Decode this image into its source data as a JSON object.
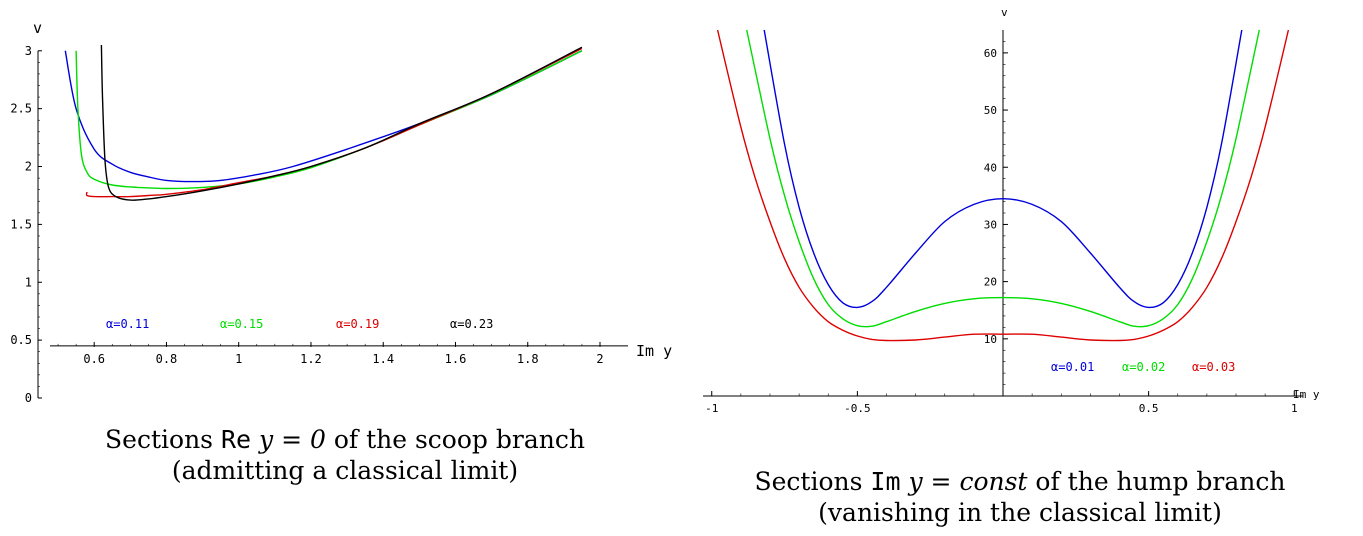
{
  "captions": {
    "left": {
      "line1_pre": "Sections ",
      "line1_code": "Re",
      "line1_math": " y = 0",
      "line1_post": " of the scoop branch",
      "line2": "(admitting a classical limit)"
    },
    "right": {
      "line1_pre": "Sections ",
      "line1_code": "Im",
      "line1_math": " y = ",
      "line1_math_it": "const",
      "line1_post": " of the hump branch",
      "line2": "(vanishing in the classical limit)"
    }
  },
  "chart_data": [
    {
      "type": "line",
      "xlabel": "Im y",
      "ylabel": "v",
      "xlim": [
        0.45,
        2.0
      ],
      "ylim": [
        0,
        3.05
      ],
      "x_axis_at_y": 0.45,
      "xticks": [
        0.6,
        0.8,
        1,
        1.2,
        1.4,
        1.6,
        1.8,
        2
      ],
      "xtick_labels": [
        "0.6",
        "0.8",
        "1",
        "1.2",
        "1.4",
        "1.6",
        "1.8",
        "2"
      ],
      "yticks": [
        0,
        0.5,
        1,
        1.5,
        2,
        2.5,
        3
      ],
      "ytick_labels": [
        "0",
        "0.5",
        "1",
        "1.5",
        "2",
        "2.5",
        "3"
      ],
      "series": [
        {
          "name": "α=0.11",
          "color": "#0000dd",
          "x": [
            0.52,
            0.55,
            0.6,
            0.65,
            0.7,
            0.75,
            0.8,
            0.87,
            0.95,
            1.05,
            1.15,
            1.3,
            1.5,
            1.7,
            1.95
          ],
          "y": [
            3.0,
            2.5,
            2.15,
            2.02,
            1.95,
            1.91,
            1.88,
            1.87,
            1.88,
            1.93,
            2.0,
            2.15,
            2.37,
            2.62,
            3.0
          ]
        },
        {
          "name": "α=0.15",
          "color": "#00dd00",
          "x": [
            0.55,
            0.555,
            0.565,
            0.58,
            0.6,
            0.65,
            0.72,
            0.8,
            0.9,
            1.0,
            1.1,
            1.2,
            1.35,
            1.5,
            1.7,
            1.95
          ],
          "y": [
            3.0,
            2.5,
            2.1,
            1.95,
            1.89,
            1.84,
            1.82,
            1.81,
            1.82,
            1.85,
            1.91,
            1.99,
            2.16,
            2.36,
            2.62,
            3.0
          ]
        },
        {
          "name": "α=0.19",
          "color": "#dd0000",
          "x": [
            0.58,
            0.58,
            0.6,
            0.65,
            0.7,
            0.75,
            0.8,
            0.9,
            1.0,
            1.1,
            1.2,
            1.35,
            1.5,
            1.7,
            1.95
          ],
          "y": [
            1.78,
            1.75,
            1.74,
            1.74,
            1.74,
            1.75,
            1.76,
            1.8,
            1.86,
            1.92,
            2.0,
            2.16,
            2.36,
            2.63,
            3.02
          ]
        },
        {
          "name": "α=0.23",
          "color": "#000000",
          "x": [
            0.62,
            0.623,
            0.63,
            0.64,
            0.66,
            0.7,
            0.75,
            0.8,
            0.9,
            1.0,
            1.1,
            1.2,
            1.35,
            1.5,
            1.7,
            1.95
          ],
          "y": [
            3.05,
            2.6,
            2.05,
            1.82,
            1.74,
            1.71,
            1.72,
            1.74,
            1.79,
            1.85,
            1.92,
            2.0,
            2.16,
            2.37,
            2.63,
            3.03
          ]
        }
      ]
    },
    {
      "type": "line",
      "xlabel": "Im y",
      "ylabel": "v",
      "xlim": [
        -1.03,
        1.03
      ],
      "ylim": [
        0,
        64
      ],
      "xticks": [
        -1,
        -0.5,
        0.5,
        1
      ],
      "xtick_labels": [
        "-1",
        "-0.5",
        "0.5",
        "1"
      ],
      "yticks": [
        10,
        20,
        30,
        40,
        50,
        60
      ],
      "ytick_labels": [
        "10",
        "20",
        "30",
        "40",
        "50",
        "60"
      ],
      "series": [
        {
          "name": "α=0.01",
          "color": "#0000dd",
          "x": [
            -0.82,
            -0.75,
            -0.7,
            -0.65,
            -0.6,
            -0.55,
            -0.5,
            -0.45,
            -0.4,
            -0.3,
            -0.2,
            -0.1,
            0,
            0.1,
            0.2,
            0.3,
            0.4,
            0.45,
            0.5,
            0.55,
            0.6,
            0.65,
            0.7,
            0.75,
            0.82
          ],
          "y": [
            64,
            44,
            33,
            25,
            19.5,
            16.3,
            15.5,
            16.5,
            19,
            25,
            30.5,
            33.5,
            34.5,
            33.5,
            30.5,
            25,
            19,
            16.5,
            15.5,
            16.3,
            19.5,
            25,
            33,
            44,
            64
          ]
        },
        {
          "name": "α=0.02",
          "color": "#00dd00",
          "x": [
            -0.88,
            -0.8,
            -0.75,
            -0.7,
            -0.65,
            -0.6,
            -0.55,
            -0.5,
            -0.45,
            -0.4,
            -0.3,
            -0.2,
            -0.1,
            0,
            0.1,
            0.2,
            0.3,
            0.4,
            0.45,
            0.5,
            0.55,
            0.6,
            0.65,
            0.7,
            0.75,
            0.8,
            0.88
          ],
          "y": [
            64,
            45,
            35,
            27,
            20.5,
            16,
            13.5,
            12.3,
            12.2,
            13,
            14.8,
            16.2,
            17,
            17.2,
            17,
            16.2,
            14.8,
            13,
            12.2,
            12.3,
            13.5,
            16,
            20.5,
            27,
            35,
            45,
            64
          ]
        },
        {
          "name": "α=0.03",
          "color": "#dd0000",
          "x": [
            -0.98,
            -0.9,
            -0.85,
            -0.8,
            -0.75,
            -0.7,
            -0.65,
            -0.6,
            -0.55,
            -0.5,
            -0.45,
            -0.4,
            -0.3,
            -0.2,
            -0.1,
            0,
            0.1,
            0.2,
            0.3,
            0.4,
            0.45,
            0.5,
            0.55,
            0.6,
            0.65,
            0.7,
            0.75,
            0.8,
            0.85,
            0.9,
            0.98
          ],
          "y": [
            64,
            47,
            38,
            30.5,
            24,
            19,
            15.5,
            13,
            11.5,
            10.5,
            9.9,
            9.7,
            9.8,
            10.3,
            10.8,
            10.8,
            10.8,
            10.3,
            9.8,
            9.7,
            9.9,
            10.5,
            11.5,
            13,
            15.5,
            19,
            24,
            30.5,
            38,
            47,
            64
          ]
        }
      ]
    }
  ]
}
